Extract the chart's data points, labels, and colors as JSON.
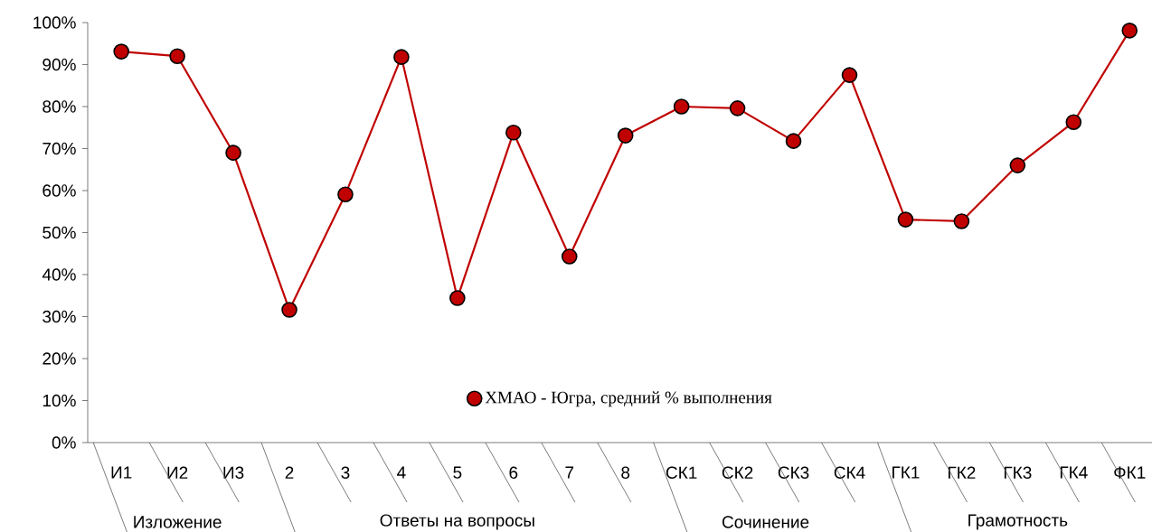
{
  "chart_data": {
    "type": "line",
    "categories": [
      "И1",
      "И2",
      "И3",
      "2",
      "3",
      "4",
      "5",
      "6",
      "7",
      "8",
      "СК1",
      "СК2",
      "СК3",
      "СК4",
      "ГК1",
      "ГК2",
      "ГК3",
      "ГК4",
      "ФК1"
    ],
    "series": [
      {
        "name": "ХМАО - Югра, средний % выполнения",
        "color": "#c00000",
        "values": [
          93.1,
          92.0,
          69.0,
          31.6,
          59.1,
          91.8,
          34.4,
          73.8,
          44.3,
          73.1,
          80.0,
          79.6,
          71.8,
          87.5,
          53.1,
          52.7,
          66.0,
          76.3,
          98.1
        ]
      }
    ],
    "annotations": [
      "Изложение",
      "Ответы на вопросы",
      "Сочинение",
      "Грамотность"
    ],
    "ylim": [
      0,
      100
    ],
    "yticks": [
      {
        "value": 0,
        "label": "0%"
      },
      {
        "value": 10,
        "label": "10%"
      },
      {
        "value": 20,
        "label": "20%"
      },
      {
        "value": 30,
        "label": "30%"
      },
      {
        "value": 40,
        "label": "40%"
      },
      {
        "value": 50,
        "label": "50%"
      },
      {
        "value": 60,
        "label": "60%"
      },
      {
        "value": 70,
        "label": "70%"
      },
      {
        "value": 80,
        "label": "80%"
      },
      {
        "value": 90,
        "label": "90%"
      },
      {
        "value": 100,
        "label": "100%"
      }
    ],
    "grid": false,
    "legend": "bottom",
    "marker": "circle",
    "line_style": "solid"
  }
}
